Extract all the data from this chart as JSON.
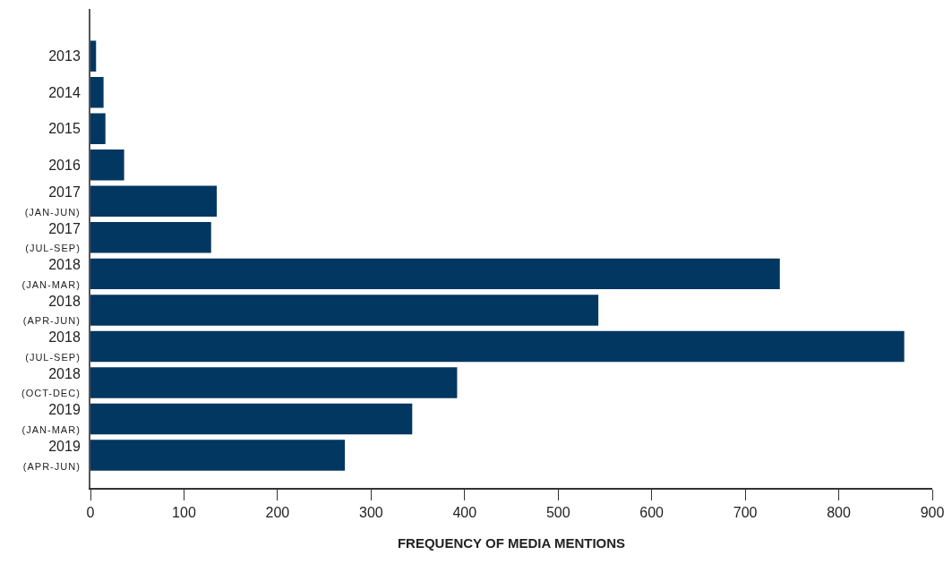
{
  "chart_data": {
    "type": "bar",
    "orientation": "horizontal",
    "xlabel": "FREQUENCY OF MEDIA MENTIONS",
    "categories": [
      "2013",
      "2014",
      "2015",
      "2016",
      "2017\n(JAN-JUN)",
      "2017\n(JUL-SEP)",
      "2018\n(JAN-MAR)",
      "2018\n(APR-JUN)",
      "2018\n(JUL-SEP)",
      "2018\n(OCT-DEC)",
      "2019\n(JAN-MAR)",
      "2019\n(APR-JUN)"
    ],
    "values": [
      6,
      14,
      16,
      36,
      135,
      129,
      737,
      543,
      870,
      392,
      344,
      272
    ],
    "color": "#023761",
    "xlim": [
      0,
      900
    ],
    "xticks": [
      0,
      100,
      200,
      300,
      400,
      500,
      600,
      700,
      800,
      900
    ]
  }
}
